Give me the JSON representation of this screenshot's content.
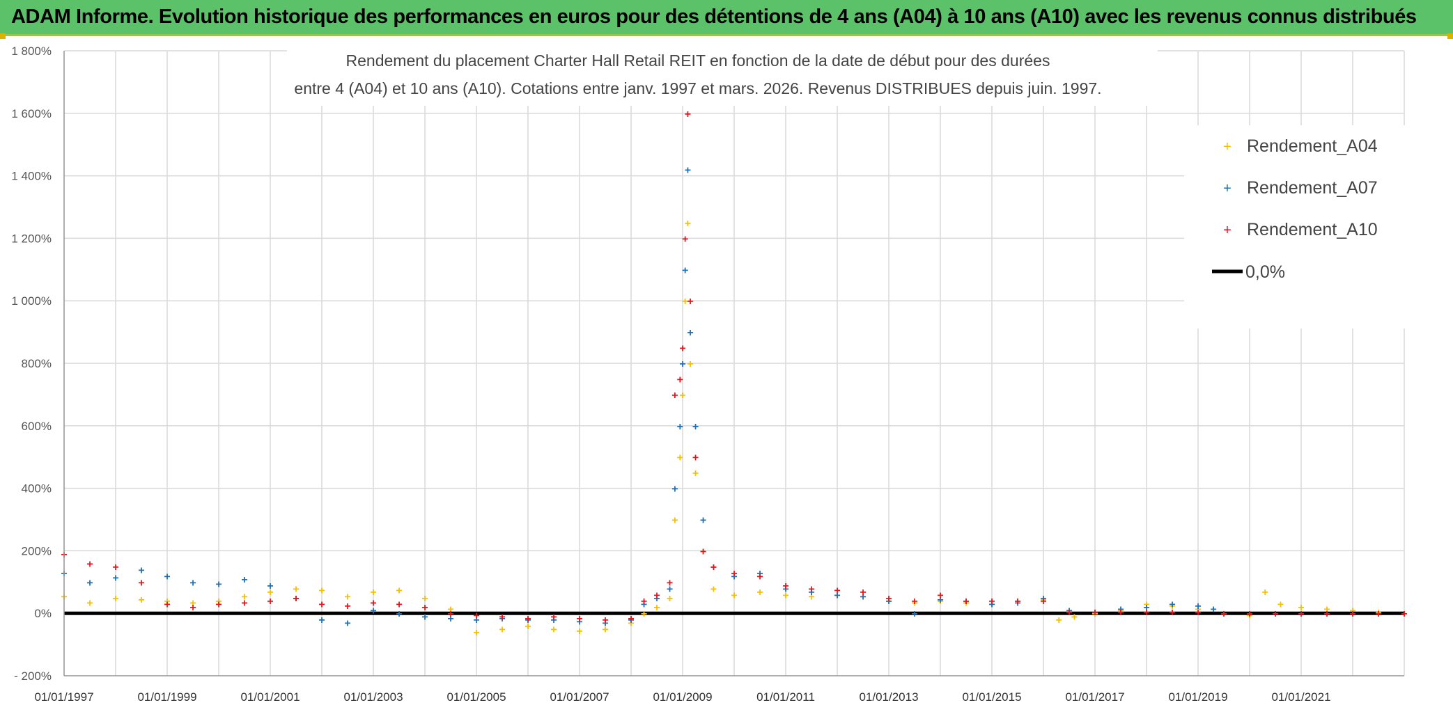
{
  "banner": {
    "title": "ADAM Informe. Evolution historique des performances en euros pour des détentions de 4 ans (A04) à 10 ans (A10) avec les revenus connus distribués"
  },
  "colors": {
    "banner_bg": "#5cc26a",
    "accent_border": "#d8b400",
    "A04": "#f5c000",
    "A07": "#1f6fb5",
    "A10": "#e5141b",
    "zero_line": "#000000",
    "grid": "#d9d9d9"
  },
  "chart_data": {
    "type": "scatter",
    "title_lines": [
      "Rendement du placement Charter Hall Retail REIT en fonction de la date de début pour des durées",
      "entre 4 (A04) et 10 ans (A10). Cotations entre janv. 1997 et mars. 2026. Revenus DISTRIBUES depuis juin. 1997."
    ],
    "xlabel": "",
    "ylabel": "",
    "x_range": [
      1997.0,
      2023.0
    ],
    "ylim": [
      -200,
      1800
    ],
    "y_ticks": [
      -200,
      0,
      200,
      400,
      600,
      800,
      1000,
      1200,
      1400,
      1600,
      1800
    ],
    "y_tick_labels": [
      "- 200%",
      "0%",
      "200%",
      "400%",
      "600%",
      "800%",
      "1 000%",
      "1 200%",
      "1 400%",
      "1 600%",
      "1 800%"
    ],
    "x_ticks": [
      1997,
      1999,
      2001,
      2003,
      2005,
      2007,
      2009,
      2011,
      2013,
      2015,
      2017,
      2019,
      2021
    ],
    "x_tick_labels": [
      "01/01/1997",
      "01/01/1999",
      "01/01/2001",
      "01/01/2003",
      "01/01/2005",
      "01/01/2007",
      "01/01/2009",
      "01/01/2011",
      "01/01/2013",
      "01/01/2015",
      "01/01/2017",
      "01/01/2019",
      "01/01/2021"
    ],
    "grid": true,
    "legend_position": "top-right",
    "legend": [
      {
        "label": "Rendement_A04",
        "color": "#f5c000",
        "marker": "+"
      },
      {
        "label": "Rendement_A07",
        "color": "#1f6fb5",
        "marker": "+"
      },
      {
        "label": "Rendement_A10",
        "color": "#e5141b",
        "marker": "+"
      },
      {
        "label": "0,0%",
        "color": "#000000",
        "marker": "line"
      }
    ],
    "series": [
      {
        "name": "Rendement_A04",
        "color": "#f5c000",
        "x": [
          1997.0,
          1997.5,
          1998.0,
          1998.5,
          1999.0,
          1999.5,
          2000.0,
          2000.5,
          2001.0,
          2001.5,
          2002.0,
          2002.5,
          2003.0,
          2003.5,
          2004.0,
          2004.5,
          2005.0,
          2005.5,
          2006.0,
          2006.5,
          2007.0,
          2007.5,
          2008.0,
          2008.25,
          2008.5,
          2008.75,
          2008.85,
          2008.95,
          2009.0,
          2009.05,
          2009.1,
          2009.15,
          2009.25,
          2009.4,
          2009.6,
          2010.0,
          2010.5,
          2011.0,
          2011.5,
          2012.0,
          2012.5,
          2013.0,
          2013.5,
          2014.0,
          2014.5,
          2015.0,
          2015.5,
          2016.0,
          2016.3,
          2016.6,
          2017.0,
          2017.5,
          2018.0,
          2018.5,
          2019.0,
          2019.5,
          2020.0,
          2020.3,
          2020.6,
          2021.0,
          2021.5,
          2022.0,
          2022.5,
          2023.0
        ],
        "y": [
          55,
          35,
          50,
          45,
          40,
          35,
          40,
          55,
          70,
          80,
          75,
          55,
          70,
          75,
          50,
          15,
          -60,
          -50,
          -40,
          -50,
          -55,
          -50,
          -30,
          0,
          20,
          50,
          300,
          500,
          700,
          1000,
          1250,
          800,
          450,
          200,
          80,
          60,
          70,
          60,
          55,
          60,
          55,
          40,
          35,
          40,
          35,
          30,
          40,
          45,
          -20,
          -10,
          0,
          10,
          30,
          25,
          15,
          0,
          -5,
          70,
          30,
          20,
          15,
          10,
          5,
          0
        ]
      },
      {
        "name": "Rendement_A07",
        "color": "#1f6fb5",
        "x": [
          1997.0,
          1997.5,
          1998.0,
          1998.5,
          1999.0,
          1999.5,
          2000.0,
          2000.5,
          2001.0,
          2001.5,
          2002.0,
          2002.5,
          2003.0,
          2003.5,
          2004.0,
          2004.5,
          2005.0,
          2005.5,
          2006.0,
          2006.5,
          2007.0,
          2007.5,
          2008.0,
          2008.25,
          2008.5,
          2008.75,
          2008.85,
          2008.95,
          2009.0,
          2009.05,
          2009.1,
          2009.15,
          2009.25,
          2009.4,
          2009.6,
          2010.0,
          2010.5,
          2011.0,
          2011.5,
          2012.0,
          2012.5,
          2013.0,
          2013.5,
          2014.0,
          2014.5,
          2015.0,
          2015.5,
          2016.0,
          2016.5,
          2017.0,
          2017.5,
          2018.0,
          2018.5,
          2019.0,
          2019.3
        ],
        "y": [
          130,
          100,
          115,
          140,
          120,
          100,
          95,
          110,
          90,
          50,
          -20,
          -30,
          10,
          0,
          -10,
          -15,
          -20,
          -15,
          -20,
          -20,
          -25,
          -30,
          -20,
          30,
          50,
          80,
          400,
          600,
          800,
          1100,
          1420,
          900,
          600,
          300,
          150,
          120,
          130,
          80,
          70,
          60,
          55,
          40,
          0,
          45,
          40,
          30,
          35,
          50,
          10,
          5,
          15,
          20,
          30,
          25,
          15
        ]
      },
      {
        "name": "Rendement_A10",
        "color": "#e5141b",
        "x": [
          1997.0,
          1997.5,
          1998.0,
          1998.5,
          1999.0,
          1999.5,
          2000.0,
          2000.5,
          2001.0,
          2001.5,
          2002.0,
          2002.5,
          2003.0,
          2003.5,
          2004.0,
          2004.5,
          2005.0,
          2005.5,
          2006.0,
          2006.5,
          2007.0,
          2007.5,
          2008.0,
          2008.25,
          2008.5,
          2008.75,
          2008.85,
          2008.95,
          2009.0,
          2009.05,
          2009.1,
          2009.15,
          2009.25,
          2009.4,
          2009.6,
          2010.0,
          2010.5,
          2011.0,
          2011.5,
          2012.0,
          2012.5,
          2013.0,
          2013.5,
          2014.0,
          2014.5,
          2015.0,
          2015.5,
          2016.0,
          2016.5,
          2017.0,
          2017.5,
          2018.0,
          2018.5,
          2019.0,
          2019.5,
          2020.0,
          2020.5,
          2021.0,
          2021.5,
          2022.0,
          2022.5,
          2023.0
        ],
        "y": [
          190,
          160,
          150,
          100,
          30,
          20,
          30,
          35,
          40,
          50,
          30,
          25,
          35,
          30,
          20,
          0,
          -5,
          -10,
          -15,
          -10,
          -15,
          -20,
          -15,
          40,
          60,
          100,
          700,
          750,
          850,
          1200,
          1600,
          1000,
          500,
          200,
          150,
          130,
          120,
          90,
          80,
          75,
          70,
          50,
          40,
          60,
          40,
          40,
          40,
          40,
          5,
          5,
          5,
          5,
          5,
          5,
          0,
          0,
          0,
          0,
          0,
          0,
          0,
          0
        ]
      }
    ]
  }
}
